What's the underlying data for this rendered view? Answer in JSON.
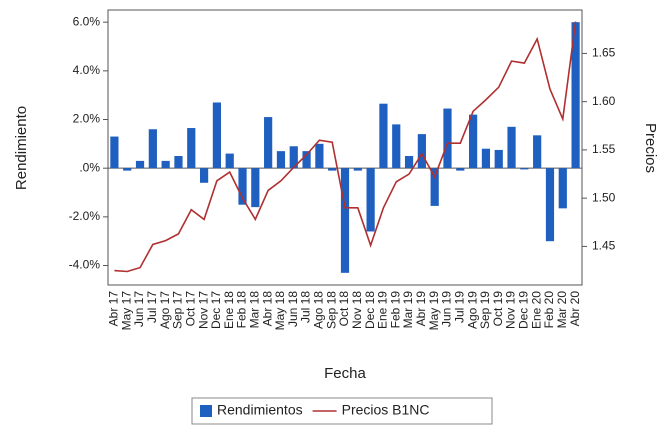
{
  "chart_data": {
    "type": "bar-line",
    "x_label": "Fecha",
    "y_label": "Rendimiento",
    "y2_label": "Precios",
    "categories": [
      "Abr 17",
      "May 17",
      "Jun 17",
      "Jul 17",
      "Ago 17",
      "Sep 17",
      "Oct 17",
      "Nov 17",
      "Dec 17",
      "Ene 18",
      "Feb 18",
      "Mar 18",
      "Abr 18",
      "May 18",
      "Jun 18",
      "Jul 18",
      "Ago 18",
      "Sep 18",
      "Oct 18",
      "Nov 18",
      "Dec 18",
      "Ene 19",
      "Feb 19",
      "Mar 19",
      "Abr 19",
      "May 19",
      "Jun 19",
      "Jul 19",
      "Ago 19",
      "Sep 19",
      "Oct 19",
      "Nov 19",
      "Dec 19",
      "Ene 20",
      "Feb 20",
      "Mar 20",
      "Abr 20"
    ],
    "series": [
      {
        "name": "Rendimientos",
        "type": "bar",
        "color": "#1f5fbf",
        "values": [
          1.3,
          -0.1,
          0.3,
          1.6,
          0.3,
          0.5,
          1.65,
          -0.6,
          2.7,
          0.6,
          -1.5,
          -1.6,
          2.1,
          0.7,
          0.9,
          0.7,
          1.0,
          -0.1,
          -4.3,
          -0.1,
          -2.6,
          2.65,
          1.8,
          0.5,
          1.4,
          -1.55,
          2.45,
          -0.1,
          2.2,
          0.8,
          0.75,
          1.7,
          -0.05,
          1.35,
          -3.0,
          -1.65,
          6.0
        ]
      },
      {
        "name": "Precios B1NC",
        "type": "line",
        "axis": "y2",
        "color": "#b03030",
        "values": [
          1.425,
          1.424,
          1.428,
          1.452,
          1.456,
          1.463,
          1.488,
          1.478,
          1.518,
          1.527,
          1.5,
          1.478,
          1.508,
          1.518,
          1.532,
          1.545,
          1.56,
          1.558,
          1.49,
          1.49,
          1.451,
          1.49,
          1.517,
          1.525,
          1.546,
          1.522,
          1.557,
          1.557,
          1.59,
          1.602,
          1.615,
          1.642,
          1.64,
          1.665,
          1.613,
          1.582,
          1.683
        ]
      }
    ],
    "ylim": [
      -4.8,
      6.5
    ],
    "yticks": [
      {
        "value": 6,
        "label": "6.0%"
      },
      {
        "value": 4,
        "label": "4.0%"
      },
      {
        "value": 2,
        "label": "2.0%"
      },
      {
        "value": 0,
        "label": ".0%"
      },
      {
        "value": -2,
        "label": "-2.0%"
      },
      {
        "value": -4,
        "label": "-4.0%"
      }
    ],
    "y2lim": [
      1.41,
      1.695
    ],
    "y2ticks": [
      1.65,
      {
        "value": 1.6,
        "label": "1.60"
      },
      1.55,
      {
        "value": 1.5,
        "label": "1.50"
      },
      1.45
    ]
  }
}
